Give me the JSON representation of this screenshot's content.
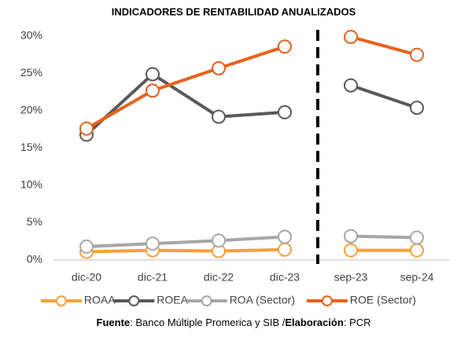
{
  "chart_data": {
    "type": "line",
    "title": "INDICADORES DE RENTABILIDAD ANUALIZADOS",
    "categories": [
      "dic-20",
      "dic-21",
      "dic-22",
      "dic-23",
      null,
      "sep-23",
      "sep-24"
    ],
    "series": [
      {
        "name": "ROAA",
        "color": "#f5a03c",
        "values": [
          1.1,
          1.3,
          1.2,
          1.4,
          null,
          1.3,
          1.3
        ]
      },
      {
        "name": "ROEA",
        "color": "#595959",
        "values": [
          16.8,
          24.9,
          19.2,
          19.8,
          null,
          23.4,
          20.4
        ]
      },
      {
        "name": "ROA (Sector)",
        "color": "#a6a6a6",
        "values": [
          1.8,
          2.2,
          2.6,
          3.1,
          null,
          3.2,
          3.0
        ]
      },
      {
        "name": "ROE (Sector)",
        "color": "#e8601c",
        "values": [
          17.6,
          22.7,
          25.7,
          28.6,
          null,
          29.9,
          27.5
        ]
      }
    ],
    "ylim": [
      0,
      30
    ],
    "yticks": [
      {
        "value": 0,
        "label": "0%"
      },
      {
        "value": 5,
        "label": "5%"
      },
      {
        "value": 10,
        "label": "10%"
      },
      {
        "value": 15,
        "label": "15%"
      },
      {
        "value": 20,
        "label": "20%"
      },
      {
        "value": 25,
        "label": "25%"
      },
      {
        "value": 30,
        "label": "30%"
      }
    ],
    "grid": false,
    "legend": "bottom",
    "source": [
      {
        "text": "Fuente",
        "bold": true
      },
      {
        "text": ": Banco Múltiple Promerica y SIB /",
        "bold": false
      },
      {
        "text": "Elaboración",
        "bold": true
      },
      {
        "text": ": PCR",
        "bold": false
      }
    ]
  }
}
